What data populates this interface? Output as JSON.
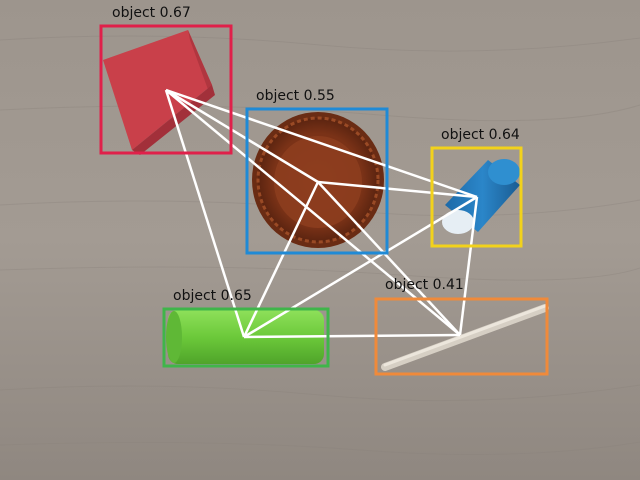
{
  "detections": [
    {
      "label": "object 0.67",
      "color": "#e0204a"
    },
    {
      "label": "object 0.55",
      "color": "#1f8ad6"
    },
    {
      "label": "object 0.64",
      "color": "#f2d21b"
    },
    {
      "label": "object 0.65",
      "color": "#3fb54a"
    },
    {
      "label": "object 0.41",
      "color": "#f08a3a"
    }
  ],
  "graph_edge_color": "#ffffff",
  "objects": [
    "red-cube",
    "brown-bowl",
    "blue-cylinder",
    "green-cylinder",
    "wooden-stick"
  ]
}
